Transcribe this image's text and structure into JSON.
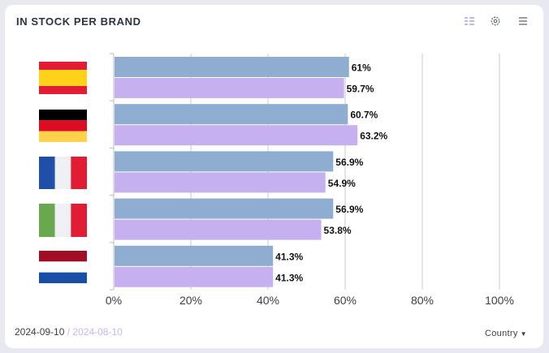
{
  "header": {
    "title": "IN STOCK PER BRAND"
  },
  "icons": [
    "list-view-icon",
    "settings-gear-icon",
    "hamburger-menu-icon"
  ],
  "colors": {
    "series_current": "#8fadd1",
    "series_previous": "#c6b0f0",
    "grid": "#c8c8c8",
    "previous_date_text": "#c9b4f2"
  },
  "footer": {
    "date_current": "2024-09-10",
    "separator": "/",
    "date_previous": "2024-08-10",
    "dimension_select": "Country"
  },
  "chart_data": {
    "type": "bar",
    "orientation": "horizontal",
    "categories": [
      "Spain",
      "Germany",
      "France",
      "Italy",
      "Netherlands"
    ],
    "category_labels_shown_as": "flag-icons",
    "series": [
      {
        "values": [
          61,
          60.7,
          56.9,
          56.9,
          41.3
        ]
      },
      {
        "values": [
          59.7,
          63.2,
          54.9,
          53.8,
          41.3
        ]
      }
    ],
    "value_labels": [
      [
        "61%",
        "60.7%",
        "56.9%",
        "56.9%",
        "41.3%"
      ],
      [
        "59.7%",
        "63.2%",
        "54.9%",
        "53.8%",
        "41.3%"
      ]
    ],
    "xlim": [
      0,
      100
    ],
    "x_ticks": [
      0,
      20,
      40,
      60,
      80,
      100
    ],
    "x_tick_labels": [
      "0%",
      "20%",
      "40%",
      "60%",
      "80%",
      "100%"
    ],
    "grid": true
  }
}
